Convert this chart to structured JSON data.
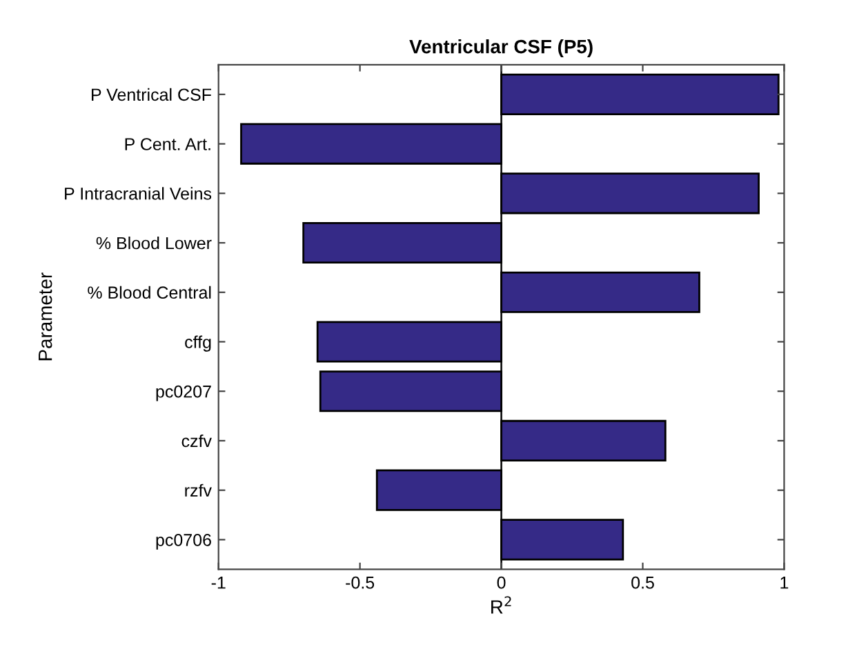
{
  "chart_data": {
    "type": "bar",
    "orientation": "horizontal",
    "title": "Ventricular CSF (P5)",
    "xlabel": "R$^{2}$",
    "ylabel": "Parameter",
    "categories": [
      "P Ventrical CSF",
      "P Cent. Art.",
      "P Intracranial Veins",
      "% Blood Lower",
      "% Blood Central",
      "cffg",
      "pc0207",
      "czfv",
      "rzfv",
      "pc0706"
    ],
    "values": [
      0.98,
      -0.92,
      0.91,
      -0.7,
      0.7,
      -0.65,
      -0.64,
      0.58,
      -0.44,
      0.43
    ],
    "color": "#352a87",
    "xlim": [
      -1,
      1
    ],
    "xticks": [
      -1,
      {
        "value": -0.5,
        "label": "-0.5"
      },
      0,
      0.5,
      1
    ],
    "ref_lines": [
      {
        "axis": "x",
        "value": 0,
        "color": "#000000"
      }
    ],
    "grid": false
  }
}
